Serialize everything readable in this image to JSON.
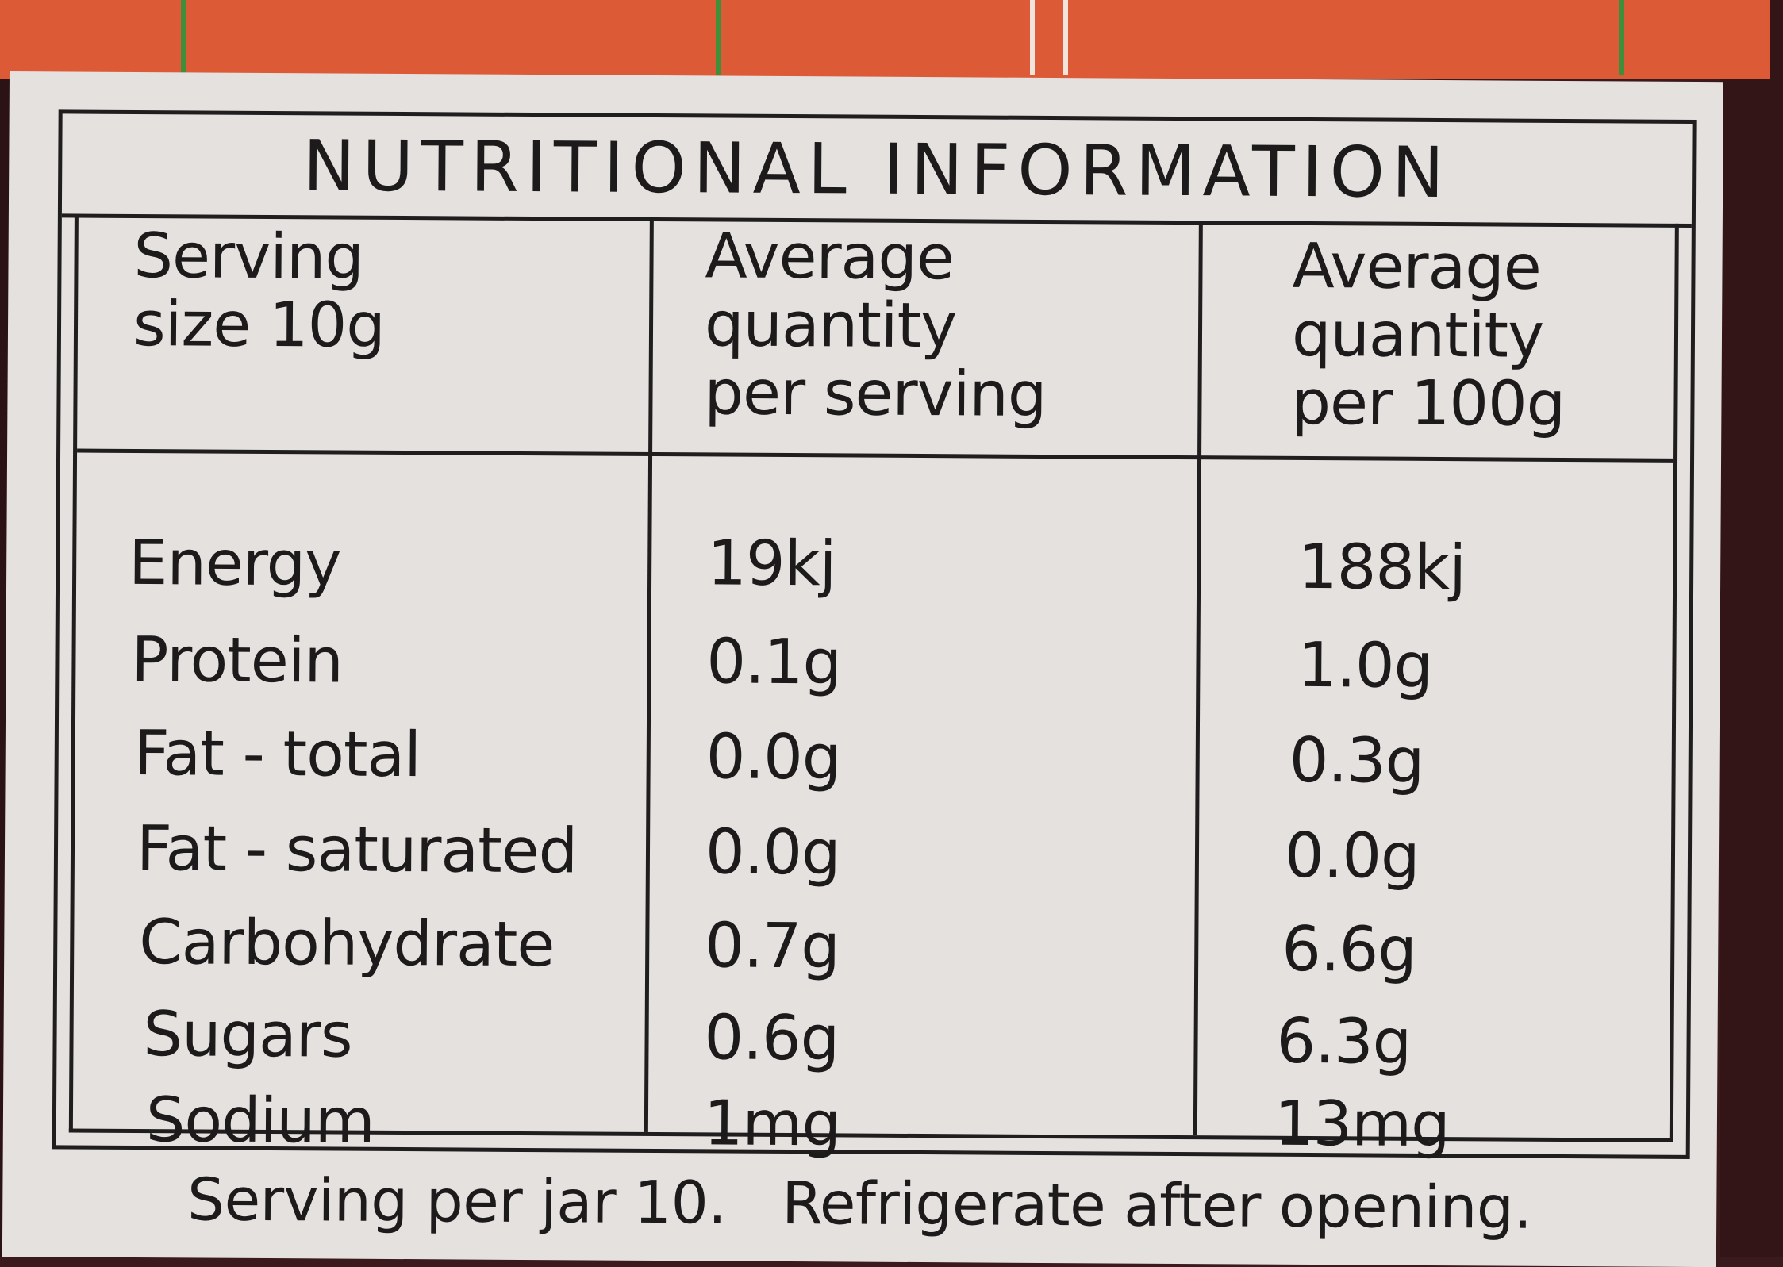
{
  "title": "NUTRITIONAL INFORMATION",
  "headers": {
    "col1": "Serving\nsize 10g",
    "col2": "Average\nquantity\nper serving",
    "col3": "Average\nquantity\nper 100g"
  },
  "rows": [
    {
      "name": "Energy",
      "per_serving": "19kj",
      "per_100g": "188kj"
    },
    {
      "name": "Protein",
      "per_serving": "0.1g",
      "per_100g": "1.0g"
    },
    {
      "name": "Fat  - total",
      "per_serving": "0.0g",
      "per_100g": "0.3g"
    },
    {
      "name": "Fat - saturated",
      "per_serving": "0.0g",
      "per_100g": "0.0g"
    },
    {
      "name": "Carbohydrate",
      "per_serving": "0.7g",
      "per_100g": "6.6g"
    },
    {
      "name": "Sugars",
      "per_serving": "0.6g",
      "per_100g": "6.3g"
    },
    {
      "name": "Sodium",
      "per_serving": "1mg",
      "per_100g": "13mg"
    }
  ],
  "footer": {
    "servings": "Serving per jar 10.",
    "storage": "Refrigerate after opening."
  },
  "colors": {
    "label_background": "#e5e1de",
    "band_orange": "#dd5a36",
    "ink": "#1c1a1b",
    "dark_surround": "#3a1a1c"
  }
}
